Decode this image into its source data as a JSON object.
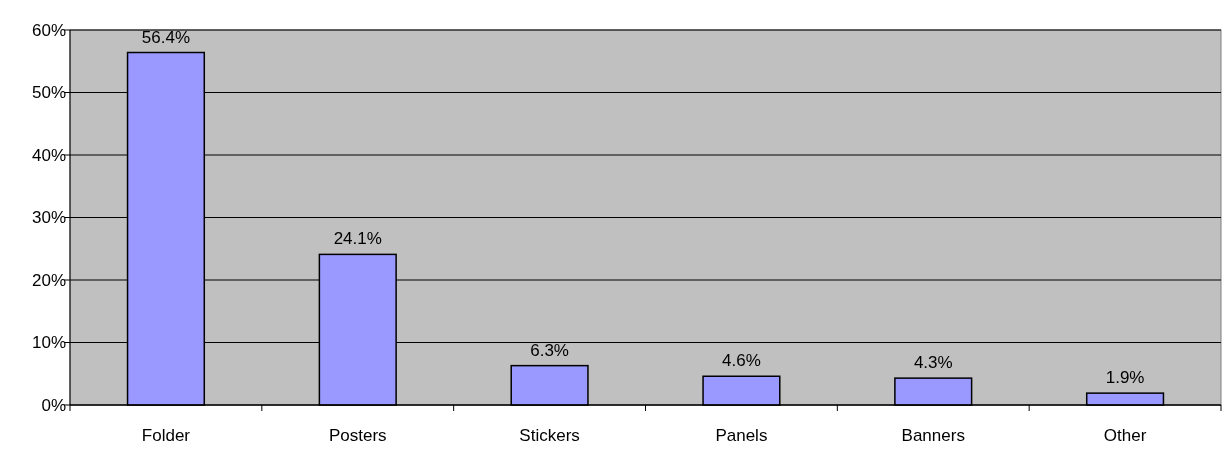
{
  "chart_data": {
    "type": "bar",
    "categories": [
      "Folder",
      "Posters",
      "Stickers",
      "Panels",
      "Banners",
      "Other"
    ],
    "values": [
      56.4,
      24.1,
      6.3,
      4.6,
      4.3,
      1.9
    ],
    "value_labels": [
      "56.4%",
      "24.1%",
      "6.3%",
      "4.6%",
      "4.3%",
      "1.9%"
    ],
    "color": "#9999ff",
    "ylim": [
      0,
      60
    ],
    "yticks": [
      {
        "value": 0,
        "label": "0%"
      },
      {
        "value": 10,
        "label": "10%"
      },
      {
        "value": 20,
        "label": "20%"
      },
      {
        "value": 30,
        "label": "30%"
      },
      {
        "value": 40,
        "label": "40%"
      },
      {
        "value": 50,
        "label": "50%"
      },
      {
        "value": 60,
        "label": "60%"
      }
    ],
    "grid": "y"
  }
}
